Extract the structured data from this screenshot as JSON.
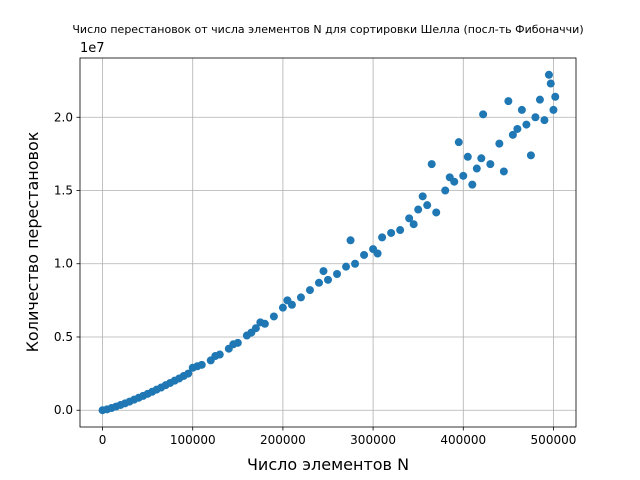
{
  "chart_data": {
    "type": "scatter",
    "title": "Число перестановок от числа элементов N для сортировки Шелла (посл-ть Фибоначчи)",
    "x_label": "Число элементов N",
    "y_label": "Количество перестановок",
    "y_offset_label": "1e7",
    "color": "#1f77b4",
    "grid": true,
    "xlim": [
      -25000,
      525000
    ],
    "ylim": [
      -1145000,
      24045000
    ],
    "xticks": [
      0,
      100000,
      200000,
      300000,
      400000,
      500000
    ],
    "yticks": [
      {
        "value": 0,
        "label": "0.0"
      },
      {
        "value": 5000000,
        "label": "0.5"
      },
      {
        "value": 10000000,
        "label": "1.0"
      },
      {
        "value": 15000000,
        "label": "1.5"
      },
      {
        "value": 20000000,
        "label": "2.0"
      }
    ],
    "x": [
      0,
      5000,
      10000,
      15000,
      20000,
      25000,
      30000,
      35000,
      40000,
      45000,
      50000,
      55000,
      60000,
      65000,
      70000,
      75000,
      80000,
      85000,
      90000,
      95000,
      100000,
      105000,
      110000,
      120000,
      125000,
      130000,
      140000,
      145000,
      150000,
      160000,
      165000,
      170000,
      175000,
      180000,
      190000,
      200000,
      205000,
      210000,
      220000,
      230000,
      240000,
      245000,
      250000,
      260000,
      270000,
      275000,
      280000,
      290000,
      300000,
      305000,
      310000,
      320000,
      330000,
      340000,
      345000,
      350000,
      355000,
      360000,
      365000,
      370000,
      380000,
      385000,
      390000,
      395000,
      400000,
      405000,
      410000,
      415000,
      420000,
      422000,
      430000,
      440000,
      445000,
      450000,
      455000,
      460000,
      465000,
      470000,
      475000,
      480000,
      485000,
      490000,
      495000,
      497000,
      500000,
      502000
    ],
    "y": [
      0,
      60000,
      150000,
      250000,
      360000,
      470000,
      590000,
      720000,
      850000,
      980000,
      1120000,
      1260000,
      1410000,
      1550000,
      1710000,
      1860000,
      2020000,
      2170000,
      2340000,
      2500000,
      2900000,
      3000000,
      3100000,
      3400000,
      3700000,
      3800000,
      4200000,
      4500000,
      4600000,
      5100000,
      5300000,
      5600000,
      6000000,
      5900000,
      6400000,
      7000000,
      7500000,
      7200000,
      7700000,
      8200000,
      8700000,
      9500000,
      8900000,
      9300000,
      9800000,
      11600000,
      10000000,
      10600000,
      11000000,
      10700000,
      11800000,
      12100000,
      12300000,
      13100000,
      12700000,
      13700000,
      14600000,
      14000000,
      16800000,
      13500000,
      15000000,
      15900000,
      15600000,
      18300000,
      16000000,
      17300000,
      15400000,
      16500000,
      17200000,
      20200000,
      16800000,
      18200000,
      16300000,
      21100000,
      18800000,
      19200000,
      20500000,
      19500000,
      17400000,
      20000000,
      21200000,
      19800000,
      22900000,
      22300000,
      20500000,
      21400000
    ]
  }
}
